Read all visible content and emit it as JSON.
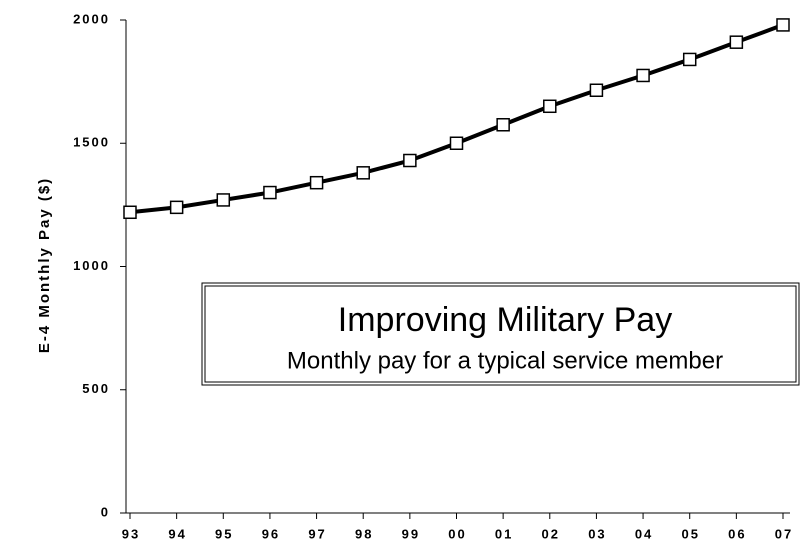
{
  "chart_data": {
    "type": "line",
    "title": "Improving Military Pay",
    "subtitle": "Monthly pay for a typical service member",
    "y_label": "E-4 Monthly Pay ($)",
    "categories": [
      "93",
      "94",
      "95",
      "96",
      "97",
      "98",
      "99",
      "00",
      "01",
      "02",
      "03",
      "04",
      "05",
      "06",
      "07"
    ],
    "values": [
      1220,
      1240,
      1270,
      1300,
      1340,
      1380,
      1430,
      1500,
      1575,
      1650,
      1715,
      1775,
      1840,
      1910,
      1980
    ],
    "color": "#000000",
    "ylim": [
      0,
      2000
    ],
    "yticks": [
      0,
      500,
      1000,
      1500,
      2000
    ],
    "grid": false
  }
}
